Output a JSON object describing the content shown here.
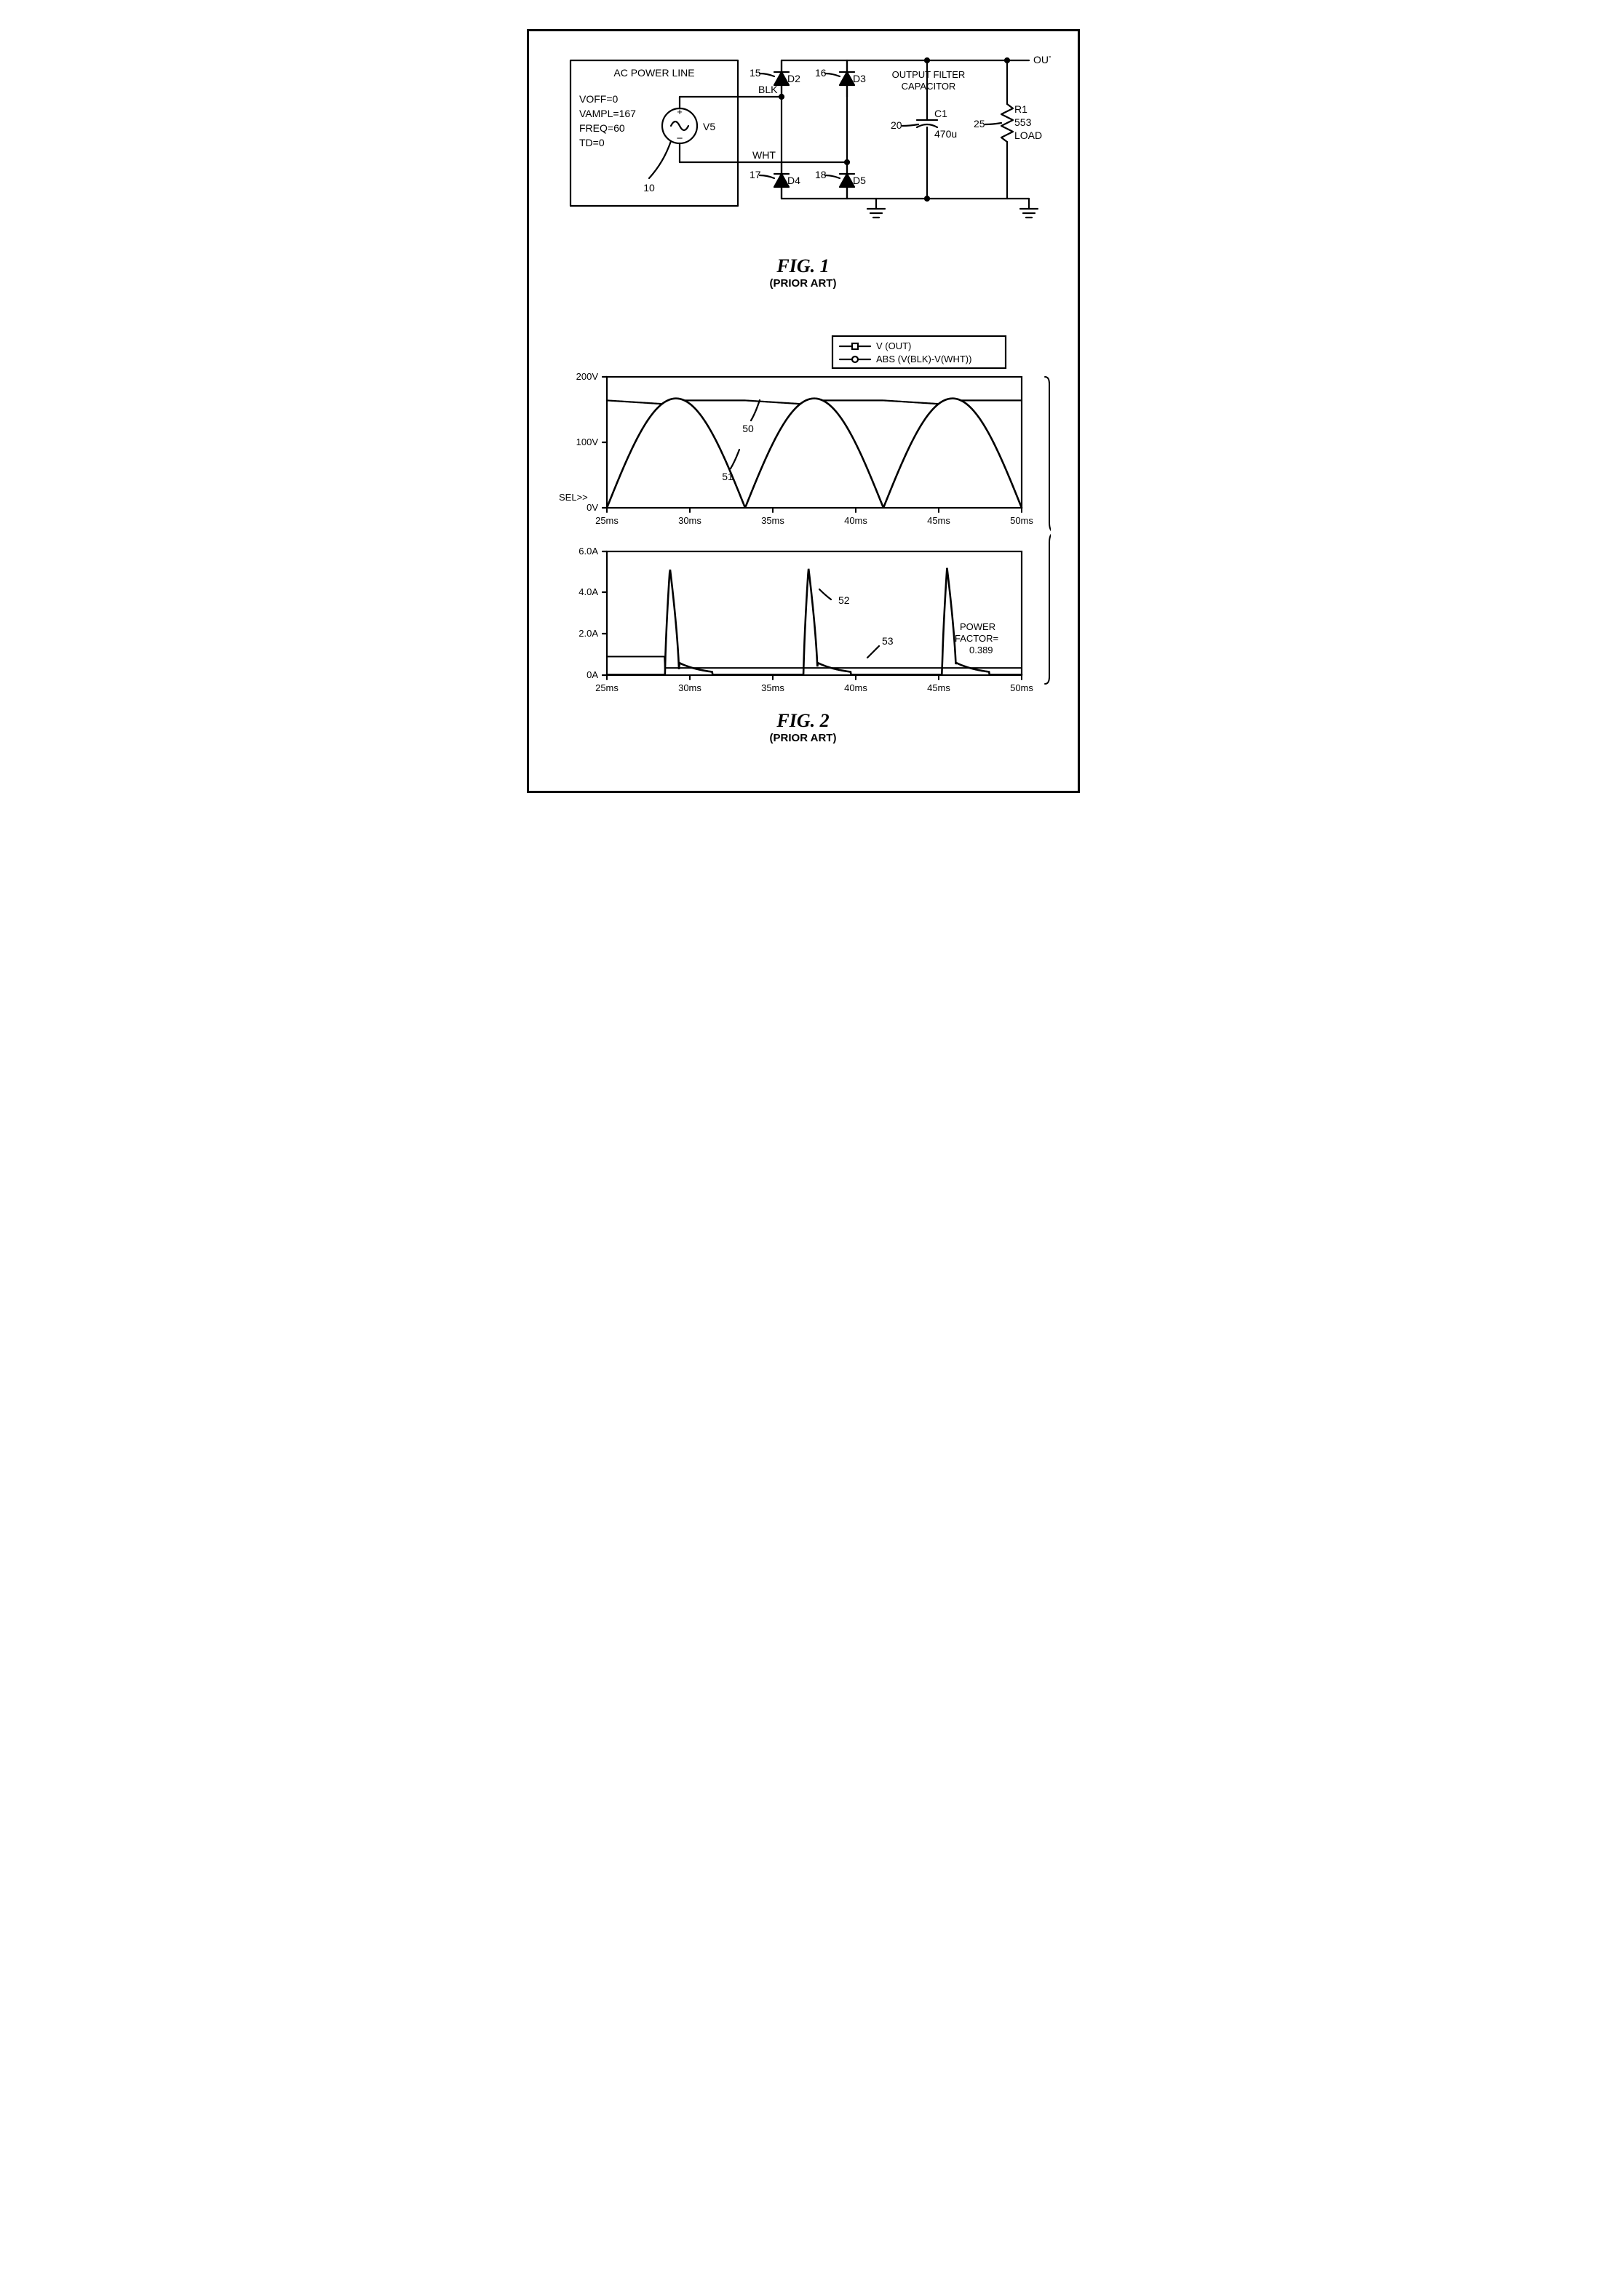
{
  "fig1": {
    "title": "FIG. 1",
    "subtitle": "(PRIOR ART)",
    "acBox": {
      "title": "AC POWER LINE",
      "params": [
        "VOFF=0",
        "VAMPL=167",
        "FREQ=60",
        "TD=0"
      ],
      "sourceLabel": "V5",
      "sourceRef": "10"
    },
    "nets": {
      "blk": "BLK",
      "wht": "WHT",
      "out": "OUT"
    },
    "diodes": {
      "d2": {
        "ref": "15",
        "name": "D2"
      },
      "d3": {
        "ref": "16",
        "name": "D3"
      },
      "d4": {
        "ref": "17",
        "name": "D4"
      },
      "d5": {
        "ref": "18",
        "name": "D5"
      }
    },
    "cap": {
      "ref": "20",
      "name": "C1",
      "value": "470u",
      "title": "OUTPUT FILTER",
      "title2": "CAPACITOR"
    },
    "load": {
      "ref": "25",
      "name": "R1",
      "value": "553",
      "label": "LOAD"
    }
  },
  "fig2": {
    "title": "FIG. 2",
    "subtitle": "(PRIOR ART)",
    "legend": {
      "a": "V (OUT)",
      "b": "ABS (V(BLK)-V(WHT))"
    },
    "sel": "SEL>>",
    "voltChart": {
      "yticks": [
        "200V",
        "100V",
        "0V"
      ],
      "xticks": [
        "25ms",
        "30ms",
        "35ms",
        "40ms",
        "45ms",
        "50ms"
      ],
      "amplitude": 167,
      "ymax": 200,
      "period_ms": 8.333,
      "x_start": 25,
      "x_end": 50,
      "vout_level": 164,
      "vout_ripple": 6,
      "colors": {
        "axis": "#000000",
        "line": "#000000",
        "bg": "#ffffff"
      },
      "line_width": 2.2,
      "ref50": "50",
      "ref51": "51"
    },
    "ampChart": {
      "yticks": [
        "6.0A",
        "4.0A",
        "2.0A",
        "0A"
      ],
      "xticks": [
        "25ms",
        "30ms",
        "35ms",
        "40ms",
        "45ms",
        "50ms"
      ],
      "ymax": 6.0,
      "x_start": 25,
      "x_end": 50,
      "spike_height": 5.2,
      "spike_width_ms": 0.85,
      "spike_times": [
        28.8,
        37.15,
        45.5
      ],
      "baseline": 0.35,
      "thin_line_level": 0.8,
      "ref52": "52",
      "ref53": "53",
      "pfLabel1": "POWER",
      "pfLabel2": "FACTOR=",
      "pfValue": "0.389"
    }
  },
  "style": {
    "stroke": "#000000",
    "stroke_width": 2.2,
    "font_size": 14
  }
}
